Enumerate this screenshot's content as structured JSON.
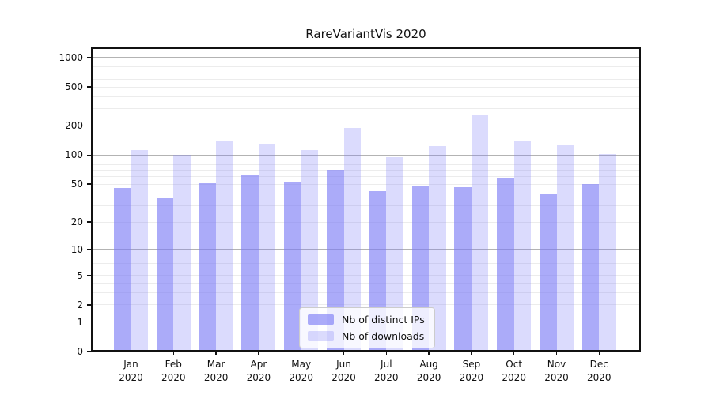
{
  "title": "RareVariantVis 2020",
  "chart_data": {
    "type": "bar",
    "title": "RareVariantVis 2020",
    "year": "2020",
    "months": [
      "Jan",
      "Feb",
      "Mar",
      "Apr",
      "May",
      "Jun",
      "Jul",
      "Aug",
      "Sep",
      "Oct",
      "Nov",
      "Dec"
    ],
    "categories": [
      "Jan 2020",
      "Feb 2020",
      "Mar 2020",
      "Apr 2020",
      "May 2020",
      "Jun 2020",
      "Jul 2020",
      "Aug 2020",
      "Sep 2020",
      "Oct 2020",
      "Nov 2020",
      "Dec 2020"
    ],
    "series": [
      {
        "name": "Nb of distinct IPs",
        "color": "#aaaaf8",
        "values": [
          46,
          36,
          51,
          62,
          52,
          71,
          42,
          48,
          47,
          59,
          40,
          50
        ]
      },
      {
        "name": "Nb of downloads",
        "color": "#dcdcf8",
        "values": [
          112,
          100,
          140,
          131,
          113,
          192,
          95,
          125,
          262,
          139,
          127,
          103
        ]
      }
    ],
    "xlabel": "",
    "ylabel": "",
    "y_scale": "log10(value+1)",
    "y_ticks": [
      1000,
      500,
      200,
      100,
      50,
      20,
      10,
      5,
      2,
      1,
      0
    ],
    "ylim": [
      0,
      1270
    ],
    "grid": true,
    "grid_major_values": [
      10,
      100,
      1000
    ],
    "legend_position": "lower-center",
    "colors": {
      "bar_distinct_ips": "#aaaaf8",
      "bar_downloads": "#dcdcf8",
      "grid_major": "#b3b3b3",
      "grid_minor": "#ececec",
      "axis": "#111111",
      "background": "#ffffff"
    }
  }
}
